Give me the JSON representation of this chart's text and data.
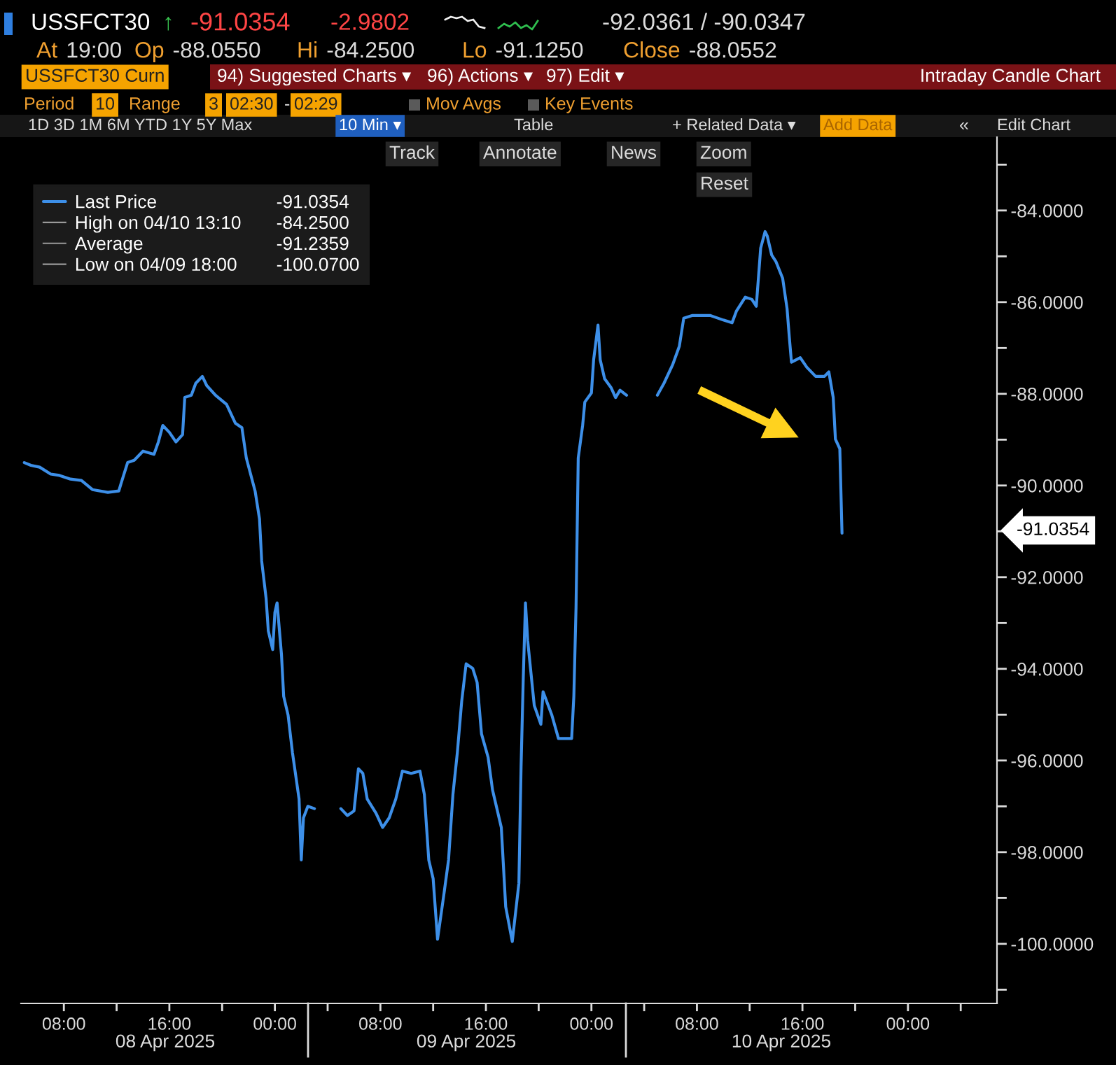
{
  "chart_data": {
    "type": "line",
    "title": "USSFCT30",
    "x": [
      "2025-04-08T05:00",
      "2025-04-08T05:30",
      "2025-04-08T06:10",
      "2025-04-08T07:00",
      "2025-04-08T07:40",
      "2025-04-08T08:30",
      "2025-04-08T09:20",
      "2025-04-08T10:10",
      "2025-04-08T11:20",
      "2025-04-08T12:10",
      "2025-04-08T12:20",
      "2025-04-08T12:50",
      "2025-04-08T13:20",
      "2025-04-08T14:00",
      "2025-04-08T14:50",
      "2025-04-08T15:10",
      "2025-04-08T15:30",
      "2025-04-08T16:00",
      "2025-04-08T16:30",
      "2025-04-08T17:00",
      "2025-04-08T17:10",
      "2025-04-08T17:40",
      "2025-04-08T18:00",
      "2025-04-08T18:30",
      "2025-04-08T18:50",
      "2025-04-08T19:30",
      "2025-04-08T20:20",
      "2025-04-08T21:00",
      "2025-04-08T21:30",
      "2025-04-08T21:50",
      "2025-04-08T22:30",
      "2025-04-08T22:50",
      "2025-04-08T23:00",
      "2025-04-08T23:20",
      "2025-04-08T23:30",
      "2025-04-08T23:50",
      "2025-04-09T00:00",
      "2025-04-09T00:10",
      "2025-04-09T00:30",
      "2025-04-09T00:40",
      "2025-04-09T01:00",
      "2025-04-09T01:20",
      "2025-04-09T01:50",
      "2025-04-09T02:00",
      "2025-04-09T02:10",
      "2025-04-09T02:30",
      "2025-04-09T03:00",
      "2025-04-09T04:00",
      "2025-04-09T05:00",
      "2025-04-09T05:30",
      "2025-04-09T06:00",
      "2025-04-09T06:20",
      "2025-04-09T06:40",
      "2025-04-09T07:00",
      "2025-04-09T07:40",
      "2025-04-09T08:10",
      "2025-04-09T08:40",
      "2025-04-09T09:10",
      "2025-04-09T09:40",
      "2025-04-09T10:20",
      "2025-04-09T11:00",
      "2025-04-09T11:20",
      "2025-04-09T11:40",
      "2025-04-09T12:00",
      "2025-04-09T12:20",
      "2025-04-09T12:50",
      "2025-04-09T13:10",
      "2025-04-09T13:30",
      "2025-04-09T13:50",
      "2025-04-09T14:10",
      "2025-04-09T14:30",
      "2025-04-09T15:00",
      "2025-04-09T15:20",
      "2025-04-09T15:40",
      "2025-04-09T16:10",
      "2025-04-09T16:30",
      "2025-04-09T17:10",
      "2025-04-09T17:30",
      "2025-04-09T18:00",
      "2025-04-09T18:30",
      "2025-04-09T18:40",
      "2025-04-09T18:50",
      "2025-04-09T19:00",
      "2025-04-09T19:10",
      "2025-04-09T19:40",
      "2025-04-09T20:10",
      "2025-04-09T20:20",
      "2025-04-09T21:00",
      "2025-04-09T21:30",
      "2025-04-09T22:00",
      "2025-04-09T22:30",
      "2025-04-09T22:40",
      "2025-04-09T22:50",
      "2025-04-09T23:00",
      "2025-04-09T23:20",
      "2025-04-09T23:30",
      "2025-04-10T00:00",
      "2025-04-10T00:10",
      "2025-04-10T00:30",
      "2025-04-10T00:40",
      "2025-04-10T01:00",
      "2025-04-10T01:30",
      "2025-04-10T01:50",
      "2025-04-10T02:10",
      "2025-04-10T02:40",
      "2025-04-10T04:00",
      "2025-04-10T05:00",
      "2025-04-10T05:30",
      "2025-04-10T06:10",
      "2025-04-10T06:40",
      "2025-04-10T07:00",
      "2025-04-10T07:40",
      "2025-04-10T09:00",
      "2025-04-10T10:00",
      "2025-04-10T10:40",
      "2025-04-10T11:00",
      "2025-04-10T11:40",
      "2025-04-10T12:10",
      "2025-04-10T12:30",
      "2025-04-10T12:50",
      "2025-04-10T13:10",
      "2025-04-10T13:20",
      "2025-04-10T13:40",
      "2025-04-10T14:00",
      "2025-04-10T14:30",
      "2025-04-10T14:50",
      "2025-04-10T15:00",
      "2025-04-10T15:10",
      "2025-04-10T15:50",
      "2025-04-10T16:20",
      "2025-04-10T17:00",
      "2025-04-10T17:40",
      "2025-04-10T18:00",
      "2025-04-10T18:20",
      "2025-04-10T18:30",
      "2025-04-10T18:50",
      "2025-04-10T19:00"
    ],
    "series": [
      {
        "name": "Last Price",
        "color": "#3d8fe8",
        "values": [
          -89.5,
          -89.56,
          -89.6,
          -89.75,
          -89.78,
          -89.86,
          -89.89,
          -90.09,
          -90.15,
          -90.12,
          -89.96,
          -89.5,
          -89.45,
          -89.25,
          -89.32,
          -89.05,
          -88.69,
          -88.84,
          -89.05,
          -88.89,
          -88.08,
          -88.03,
          -87.77,
          -87.62,
          -87.82,
          -88.03,
          -88.23,
          -88.64,
          -88.74,
          -89.4,
          -90.12,
          -90.73,
          -91.65,
          -92.46,
          -93.17,
          -93.58,
          -92.77,
          -92.56,
          -93.69,
          -94.6,
          -95.01,
          -95.83,
          -96.84,
          -98.17,
          -97.25,
          -97.0,
          -97.05,
          null,
          -97.05,
          -97.2,
          -97.1,
          -96.18,
          -96.28,
          -96.84,
          -97.15,
          -97.46,
          -97.25,
          -96.84,
          -96.23,
          -96.28,
          -96.23,
          -96.74,
          -98.17,
          -98.58,
          -99.9,
          -98.88,
          -98.17,
          -96.74,
          -95.83,
          -94.7,
          -93.89,
          -93.99,
          -94.3,
          -95.42,
          -95.93,
          -96.64,
          -97.46,
          -99.19,
          -99.95,
          -98.68,
          -96.13,
          -94.19,
          -92.56,
          -93.38,
          -94.8,
          -95.21,
          -94.5,
          -95.01,
          -95.52,
          -95.52,
          -95.52,
          -94.6,
          -92.66,
          -89.4,
          -88.69,
          -88.18,
          -87.98,
          -87.26,
          -86.5,
          -87.26,
          -87.67,
          -87.87,
          -88.08,
          -87.92,
          -88.03,
          null,
          -88.03,
          -87.77,
          -87.36,
          -86.96,
          -86.35,
          -86.29,
          -86.29,
          -86.39,
          -86.45,
          -86.19,
          -85.89,
          -85.94,
          -86.09,
          -84.82,
          -84.46,
          -84.56,
          -84.97,
          -85.12,
          -85.48,
          -86.14,
          -86.75,
          -87.31,
          -87.21,
          -87.42,
          -87.62,
          -87.62,
          -87.52,
          -88.08,
          -88.99,
          -89.2,
          -91.04
        ]
      }
    ],
    "xlim": [
      "2025-04-08T04:45",
      "2025-04-11T06:45"
    ],
    "xticks": [
      {
        "value": "2025-04-08T08:00",
        "label": "08:00"
      },
      {
        "value": "2025-04-08T12:00",
        "label": null
      },
      {
        "value": "2025-04-08T16:00",
        "label": "16:00"
      },
      {
        "value": "2025-04-08T20:00",
        "label": null
      },
      {
        "value": "2025-04-09T00:00",
        "label": "00:00"
      },
      {
        "value": "2025-04-09T04:00",
        "label": null
      },
      {
        "value": "2025-04-09T08:00",
        "label": "08:00"
      },
      {
        "value": "2025-04-09T12:00",
        "label": null
      },
      {
        "value": "2025-04-09T16:00",
        "label": "16:00"
      },
      {
        "value": "2025-04-09T20:00",
        "label": null
      },
      {
        "value": "2025-04-10T00:00",
        "label": "00:00"
      },
      {
        "value": "2025-04-10T04:00",
        "label": null
      },
      {
        "value": "2025-04-10T08:00",
        "label": "08:00"
      },
      {
        "value": "2025-04-10T12:00",
        "label": null
      },
      {
        "value": "2025-04-10T16:00",
        "label": "16:00"
      },
      {
        "value": "2025-04-10T20:00",
        "label": null
      },
      {
        "value": "2025-04-11T00:00",
        "label": "00:00"
      },
      {
        "value": "2025-04-11T04:00",
        "label": null
      }
    ],
    "ylim": [
      -101.3,
      -82.4
    ],
    "yticks": [
      {
        "value": -101,
        "label": null
      },
      {
        "value": -100,
        "label": "-100.0000"
      },
      {
        "value": -99,
        "label": null
      },
      {
        "value": -98,
        "label": "-98.0000"
      },
      {
        "value": -97,
        "label": null
      },
      {
        "value": -96,
        "label": "-96.0000"
      },
      {
        "value": -95,
        "label": null
      },
      {
        "value": -94,
        "label": "-94.0000"
      },
      {
        "value": -93,
        "label": null
      },
      {
        "value": -92,
        "label": "-92.0000"
      },
      {
        "value": -91,
        "label": null
      },
      {
        "value": -90,
        "label": "-90.0000"
      },
      {
        "value": -89,
        "label": null
      },
      {
        "value": -88,
        "label": "-88.0000"
      },
      {
        "value": -87,
        "label": null
      },
      {
        "value": -86,
        "label": "-86.0000"
      },
      {
        "value": -85,
        "label": null
      },
      {
        "value": -84,
        "label": "-84.0000"
      },
      {
        "value": -83,
        "label": null
      }
    ],
    "legend": "top left",
    "annotations": [
      "↑",
      "-91.0354",
      "-2.9802",
      "-92.0361 / -90.0347",
      "At 19:00",
      "Op -88.0550",
      "Hi -84.2500",
      "Lo -91.1250",
      "Close -88.0552",
      "USSFCT30 Curn",
      "94) Suggested Charts ▾",
      "96) Actions ▾",
      "97) Edit ▾",
      "Intraday Candle Chart",
      "Period",
      "10",
      "Range",
      "3",
      "02:30",
      "-",
      "02:29",
      "Mov Avgs",
      "Key Events",
      "1D 3D 1M 6M YTD 1Y 5Y Max",
      "10 Min ▾",
      "Table",
      "+ Related Data ▾",
      "Add Data",
      "«",
      "Edit Chart",
      "Track",
      "Annotate",
      "News",
      "Zoom",
      "Reset",
      "-91.0354",
      "High on 04/10 13:10",
      "-84.2500",
      "Average",
      "-91.2359",
      "Low on 04/09 18:00",
      "-100.0700",
      "08 Apr 2025",
      "09 Apr 2025",
      "10 Apr 2025",
      "-91.0354"
    ]
  }
}
